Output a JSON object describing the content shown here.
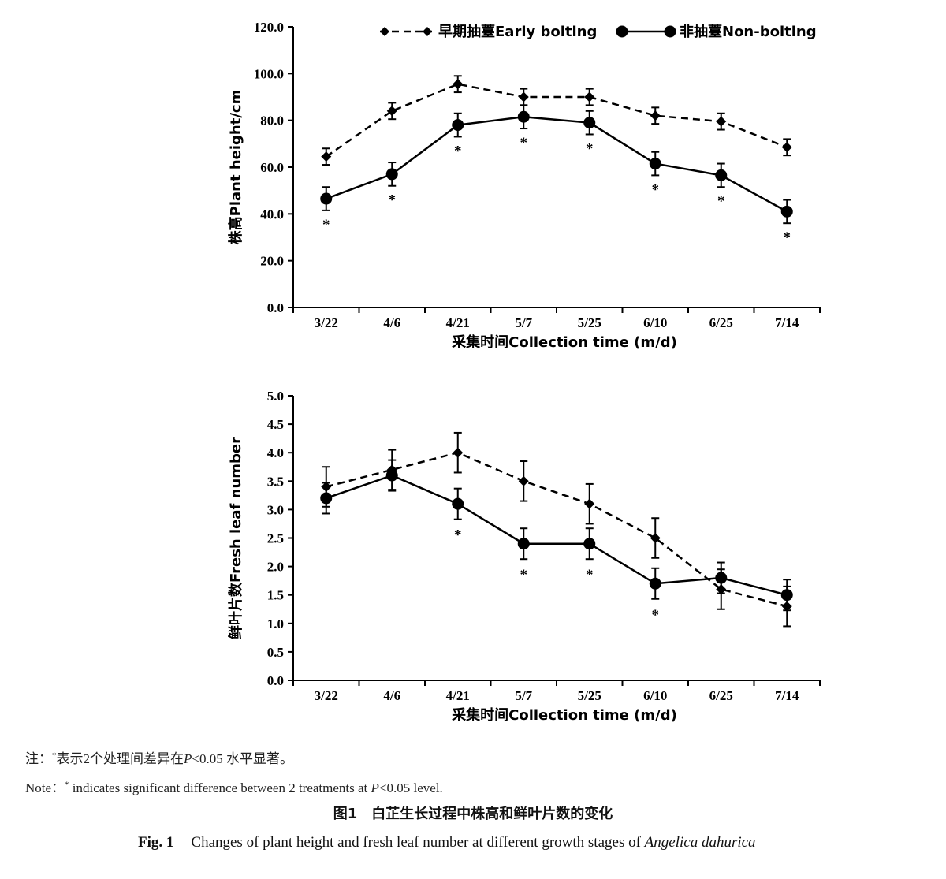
{
  "chart_data": [
    {
      "type": "line",
      "ylabel": "株高Plant height/cm",
      "xlabel": "采集时间Collection time (m/d)",
      "categories": [
        "3/22",
        "4/6",
        "4/21",
        "5/7",
        "5/25",
        "6/10",
        "6/25",
        "7/14"
      ],
      "ylim": [
        0,
        120
      ],
      "yticks": [
        "0.0",
        "20.0",
        "40.0",
        "60.0",
        "80.0",
        "100.0",
        "120.0"
      ],
      "legend": "top-right",
      "series": [
        {
          "name": "早期抽薹Early bolting",
          "style": "dashed",
          "marker": "diamond",
          "values": [
            64.5,
            84.0,
            95.5,
            90.0,
            90.0,
            82.0,
            79.5,
            68.5
          ],
          "errors": [
            3.5,
            3.5,
            3.5,
            3.5,
            3.5,
            3.5,
            3.5,
            3.5
          ]
        },
        {
          "name": "非抽薹Non-bolting",
          "style": "solid",
          "marker": "circle",
          "values": [
            46.5,
            57.0,
            78.0,
            81.5,
            79.0,
            61.5,
            56.5,
            41.0
          ],
          "errors": [
            5.0,
            5.0,
            5.0,
            5.0,
            5.0,
            5.0,
            5.0,
            5.0
          ]
        }
      ],
      "significance": [
        "*",
        "*",
        "*",
        "*",
        "*",
        "*",
        "*",
        "*"
      ]
    },
    {
      "type": "line",
      "ylabel": "鲜叶片数Fresh leaf number",
      "xlabel": "采集时间Collection time (m/d)",
      "categories": [
        "3/22",
        "4/6",
        "4/21",
        "5/7",
        "5/25",
        "6/10",
        "6/25",
        "7/14"
      ],
      "ylim": [
        0,
        5
      ],
      "yticks": [
        "0.0",
        "0.5",
        "1.0",
        "1.5",
        "2.0",
        "2.5",
        "3.0",
        "3.5",
        "4.0",
        "4.5",
        "5.0"
      ],
      "series": [
        {
          "name": "早期抽薹Early bolting",
          "style": "dashed",
          "marker": "diamond",
          "values": [
            3.4,
            3.7,
            4.0,
            3.5,
            3.1,
            2.5,
            1.6,
            1.3
          ],
          "errors": [
            0.35,
            0.35,
            0.35,
            0.35,
            0.35,
            0.35,
            0.35,
            0.35
          ]
        },
        {
          "name": "非抽薹Non-bolting",
          "style": "solid",
          "marker": "circle",
          "values": [
            3.2,
            3.6,
            3.1,
            2.4,
            2.4,
            1.7,
            1.8,
            1.5
          ],
          "errors": [
            0.27,
            0.27,
            0.27,
            0.27,
            0.27,
            0.27,
            0.27,
            0.27
          ]
        }
      ],
      "significance": [
        "",
        "",
        "*",
        "*",
        "*",
        "*",
        "",
        ""
      ]
    }
  ],
  "notes": {
    "cn_prefix": "注：",
    "cn_star": "*",
    "cn_text1": "表示2个处理间差异在",
    "cn_p": "P",
    "cn_text2": "<0.05 水平显著。",
    "en_prefix": "Note：",
    "en_star": "*",
    "en_text1": " indicates significant difference between 2 treatments at ",
    "en_p": "P",
    "en_text2": "<0.05 level."
  },
  "caption": {
    "cn": "图1　白芷生长过程中株高和鲜叶片数的变化",
    "en_label": "Fig. 1",
    "en_text": "Changes of plant height and fresh leaf number at different growth stages of ",
    "en_species": "Angelica dahurica"
  }
}
